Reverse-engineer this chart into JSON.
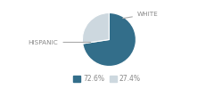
{
  "slices": [
    72.6,
    27.4
  ],
  "labels": [
    "HISPANIC",
    "WHITE"
  ],
  "colors": [
    "#336e8a",
    "#cdd8df"
  ],
  "legend_labels": [
    "72.6%",
    "27.4%"
  ],
  "startangle": 90,
  "background_color": "#ffffff",
  "text_color": "#888888",
  "line_color": "#aaaaaa"
}
